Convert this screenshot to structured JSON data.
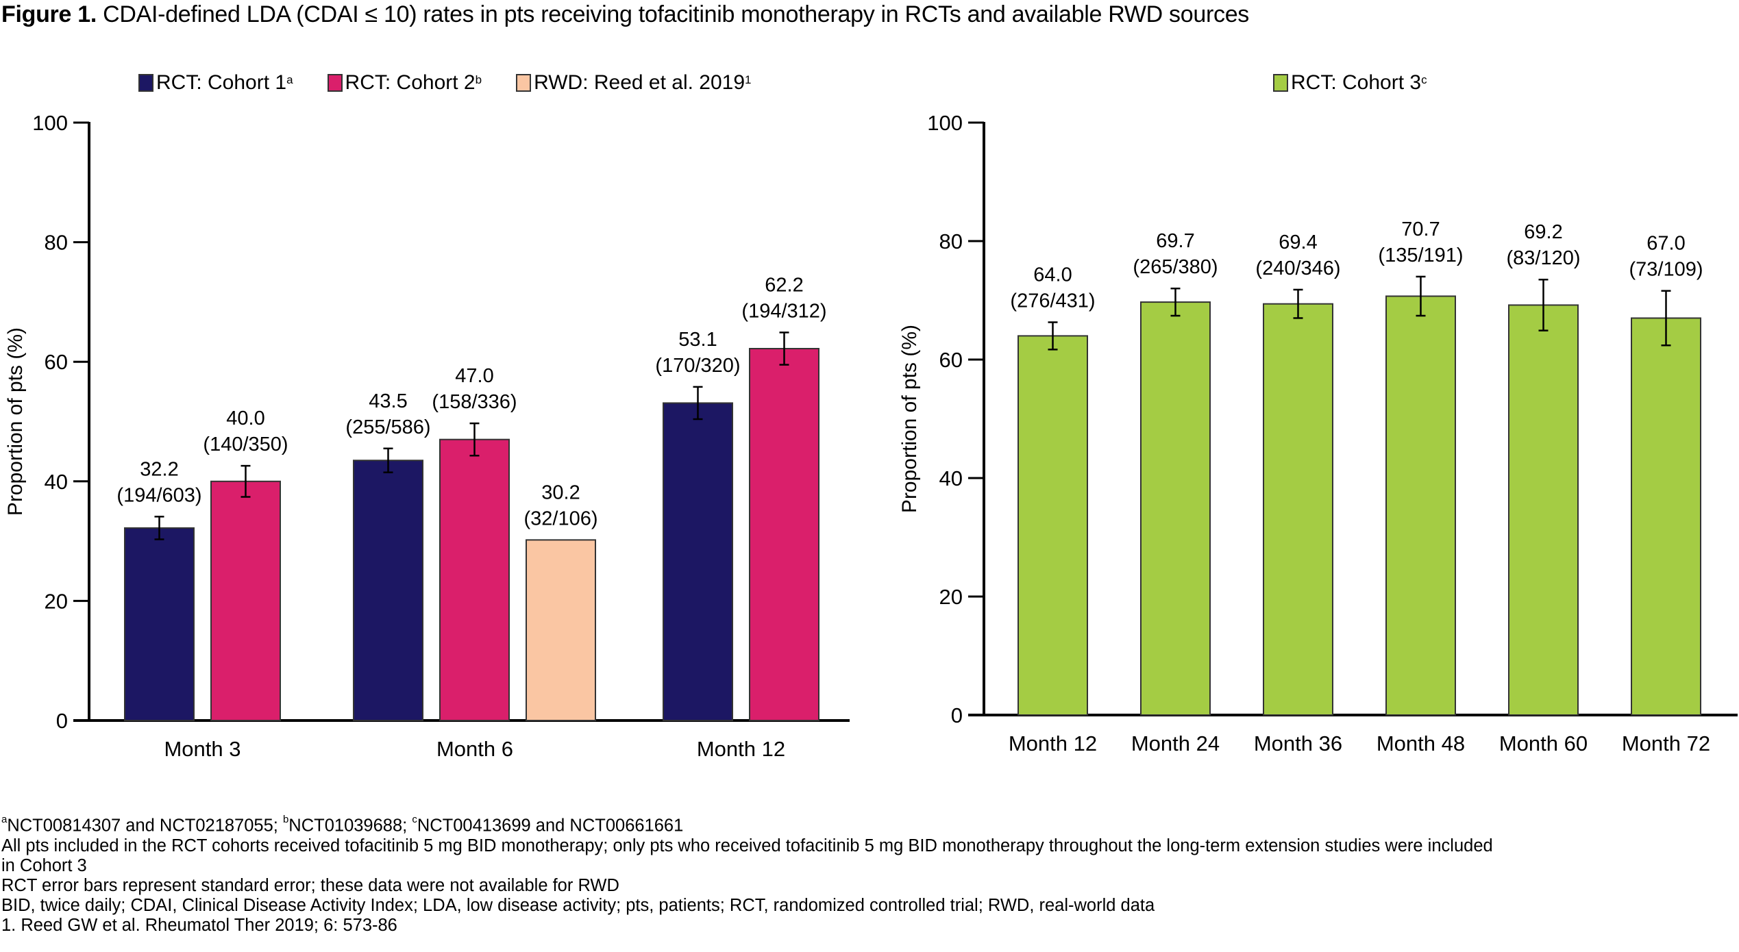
{
  "title": {
    "prefix": "Figure 1.",
    "text": " CDAI-defined LDA (CDAI ≤ 10) rates in pts receiving tofacitinib monotherapy in RCTs and available RWD sources"
  },
  "colors": {
    "cohort1": "#1c1763",
    "cohort2": "#da1f6b",
    "rwd": "#fac6a3",
    "cohort3": "#a4cc44",
    "axis": "#000000",
    "bar_outline": "#333333"
  },
  "legend_left": [
    {
      "label": "RCT: Cohort 1",
      "sup": "a",
      "color_key": "cohort1"
    },
    {
      "label": "RCT: Cohort 2",
      "sup": "b",
      "color_key": "cohort2"
    },
    {
      "label": "RWD: Reed et al. 2019",
      "sup": "1",
      "color_key": "rwd"
    }
  ],
  "legend_right": [
    {
      "label": "RCT: Cohort 3",
      "sup": "c",
      "color_key": "cohort3"
    }
  ],
  "chart_data": [
    {
      "type": "bar",
      "title": "",
      "xlabel": "",
      "ylabel": "Proportion of pts (%)",
      "ylim": [
        0,
        100
      ],
      "yticks": [
        0,
        20,
        40,
        60,
        80,
        100
      ],
      "grid": false,
      "legend": "top",
      "categories": [
        "Month 3",
        "Month 6",
        "Month 12"
      ],
      "series": [
        {
          "name": "RCT: Cohort 1",
          "color_key": "cohort1",
          "values": [
            32.2,
            43.5,
            53.1
          ],
          "labels": [
            "(194/603)",
            "(255/586)",
            "(170/320)"
          ],
          "error": [
            1.9,
            2.0,
            2.7
          ]
        },
        {
          "name": "RCT: Cohort 2",
          "color_key": "cohort2",
          "values": [
            40.0,
            47.0,
            62.2
          ],
          "labels": [
            "(140/350)",
            "(158/336)",
            "(194/312)"
          ],
          "error": [
            2.6,
            2.7,
            2.7
          ]
        },
        {
          "name": "RWD: Reed et al. 2019",
          "color_key": "rwd",
          "values": [
            null,
            30.2,
            null
          ],
          "labels": [
            null,
            "(32/106)",
            null
          ],
          "error": [
            null,
            null,
            null
          ]
        }
      ]
    },
    {
      "type": "bar",
      "title": "",
      "xlabel": "",
      "ylabel": "Proportion of pts (%)",
      "ylim": [
        0,
        100
      ],
      "yticks": [
        0,
        20,
        40,
        60,
        80,
        100
      ],
      "grid": false,
      "legend": "top",
      "categories": [
        "Month 12",
        "Month 24",
        "Month 36",
        "Month 48",
        "Month 60",
        "Month 72"
      ],
      "series": [
        {
          "name": "RCT: Cohort 3",
          "color_key": "cohort3",
          "values": [
            64.0,
            69.7,
            69.4,
            70.7,
            69.2,
            67.0
          ],
          "labels": [
            "(276/431)",
            "(265/380)",
            "(240/346)",
            "(135/191)",
            "(83/120)",
            "(73/109)"
          ],
          "error": [
            2.3,
            2.3,
            2.4,
            3.3,
            4.3,
            4.6
          ]
        }
      ]
    }
  ],
  "footnotes": [
    {
      "parts": [
        {
          "sup": "a"
        },
        {
          "text": "NCT00814307 and NCT02187055; "
        },
        {
          "sup": "b"
        },
        {
          "text": "NCT01039688; "
        },
        {
          "sup": "c"
        },
        {
          "text": "NCT00413699 and NCT00661661"
        }
      ]
    },
    {
      "parts": [
        {
          "text": "All pts included in the RCT cohorts received tofacitinib 5 mg BID monotherapy; only pts who received tofacitinib 5 mg BID monotherapy throughout the long-term extension studies were included"
        }
      ]
    },
    {
      "parts": [
        {
          "text": "in Cohort 3"
        }
      ]
    },
    {
      "parts": [
        {
          "text": "RCT error bars represent standard error; these data were not available for RWD"
        }
      ]
    },
    {
      "parts": [
        {
          "text": "BID, twice daily; CDAI, Clinical Disease Activity Index; LDA, low disease activity; pts, patients; RCT, randomized controlled trial; RWD, real-world data"
        }
      ]
    },
    {
      "parts": [
        {
          "text": "1. Reed GW et al. Rheumatol Ther 2019; 6: 573-86"
        }
      ]
    }
  ]
}
